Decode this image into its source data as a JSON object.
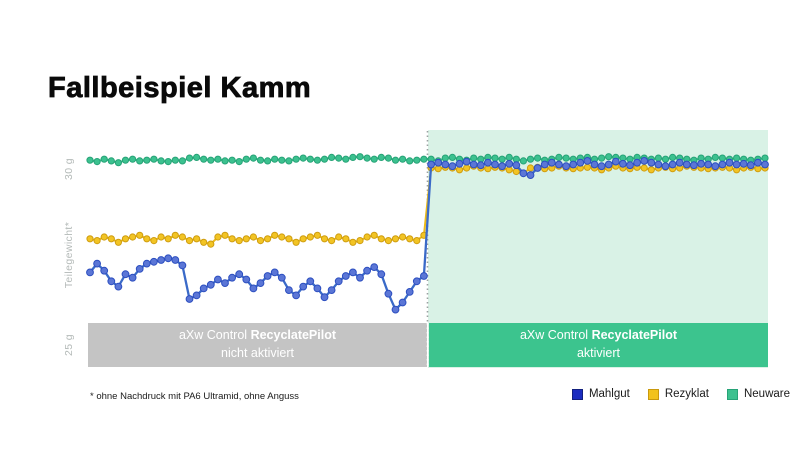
{
  "slide": {
    "title": "Fallbeispiel Kamm",
    "footnote": "* ohne Nachdruck mit PA6 Ultramid, ohne Anguss"
  },
  "annotations": {
    "left_band": {
      "prefix": "aXw Control",
      "bold": "RecyclatePilot",
      "line2": "nicht aktiviert",
      "bg": "#c4c4c4"
    },
    "right_band": {
      "prefix": "aXw Control",
      "bold": "RecyclatePilot",
      "line2": "aktiviert",
      "bg": "#3cc48e"
    },
    "highlight_region_color": "#d9f2e6",
    "divider_color": "#9aa0a0"
  },
  "chart_data": {
    "type": "line",
    "title": "",
    "xlabel": "",
    "ylabel": "Teilegewicht*",
    "y_ticks": [
      {
        "value": 30,
        "label": "30 g"
      },
      {
        "value": 25,
        "label": "25 g"
      }
    ],
    "ylim": [
      25.5,
      31.1
    ],
    "grid": false,
    "legend_position": "bottom-right",
    "x_count": 96,
    "divider_after_index": 47,
    "series": [
      {
        "name": "Neuware",
        "line_color": "#3cc18f",
        "marker_color": "#3cc18f",
        "marker_border": "#27a377",
        "values": [
          30.22,
          30.18,
          30.25,
          30.2,
          30.15,
          30.22,
          30.25,
          30.2,
          30.22,
          30.25,
          30.2,
          30.18,
          30.22,
          30.2,
          30.28,
          30.3,
          30.25,
          30.22,
          30.25,
          30.2,
          30.22,
          30.18,
          30.25,
          30.28,
          30.22,
          30.2,
          30.25,
          30.22,
          30.2,
          30.25,
          30.28,
          30.25,
          30.22,
          30.25,
          30.3,
          30.28,
          30.25,
          30.3,
          30.32,
          30.28,
          30.25,
          30.3,
          30.28,
          30.22,
          30.25,
          30.2,
          30.22,
          30.25,
          30.25,
          30.2,
          30.28,
          30.3,
          30.25,
          30.22,
          30.28,
          30.25,
          30.3,
          30.28,
          30.25,
          30.3,
          30.25,
          30.2,
          30.25,
          30.28,
          30.22,
          30.25,
          30.3,
          30.28,
          30.25,
          30.28,
          30.3,
          30.25,
          30.28,
          30.32,
          30.3,
          30.28,
          30.25,
          30.3,
          30.28,
          30.25,
          30.28,
          30.25,
          30.3,
          30.28,
          30.25,
          30.22,
          30.28,
          30.25,
          30.3,
          30.28,
          30.25,
          30.28,
          30.25,
          30.22,
          30.25,
          30.28
        ]
      },
      {
        "name": "Rezyklat",
        "line_color": "#ecba16",
        "marker_color": "#f2c424",
        "marker_border": "#cf9d10",
        "values": [
          28.0,
          27.95,
          28.05,
          28.0,
          27.9,
          28.0,
          28.05,
          28.1,
          28.0,
          27.95,
          28.05,
          28.0,
          28.1,
          28.05,
          27.95,
          28.0,
          27.9,
          27.85,
          28.05,
          28.1,
          28.0,
          27.95,
          28.0,
          28.05,
          27.95,
          28.0,
          28.1,
          28.05,
          28.0,
          27.9,
          28.0,
          28.05,
          28.1,
          28.0,
          27.95,
          28.05,
          28.0,
          27.9,
          27.95,
          28.05,
          28.1,
          28.0,
          27.95,
          28.0,
          28.05,
          28.0,
          27.95,
          28.1,
          30.0,
          29.98,
          30.02,
          30.0,
          29.95,
          30.0,
          30.05,
          30.0,
          29.98,
          30.02,
          30.0,
          29.95,
          29.9,
          29.85,
          30.0,
          30.02,
          29.98,
          30.0,
          30.05,
          30.0,
          29.98,
          30.0,
          30.02,
          30.0,
          29.95,
          30.0,
          30.05,
          30.0,
          29.98,
          30.02,
          30.0,
          29.95,
          30.0,
          30.02,
          29.98,
          30.0,
          30.05,
          30.02,
          30.0,
          29.98,
          30.0,
          30.02,
          30.0,
          29.95,
          30.0,
          30.02,
          29.98,
          30.0
        ]
      },
      {
        "name": "Mahlgut",
        "line_color": "#3a6ac8",
        "marker_color": "#5b76d6",
        "marker_border": "#2d4fc0",
        "values": [
          27.05,
          27.3,
          27.1,
          26.8,
          26.65,
          27.0,
          26.9,
          27.15,
          27.3,
          27.35,
          27.4,
          27.45,
          27.4,
          27.25,
          26.3,
          26.4,
          26.6,
          26.7,
          26.85,
          26.75,
          26.9,
          27.0,
          26.85,
          26.6,
          26.75,
          26.95,
          27.05,
          26.9,
          26.55,
          26.4,
          26.65,
          26.8,
          26.6,
          26.35,
          26.55,
          26.8,
          26.95,
          27.05,
          26.9,
          27.1,
          27.2,
          27.0,
          26.45,
          26.0,
          26.2,
          26.5,
          26.8,
          26.95,
          30.1,
          30.15,
          30.1,
          30.05,
          30.12,
          30.18,
          30.1,
          30.08,
          30.15,
          30.1,
          30.05,
          30.12,
          30.08,
          29.85,
          29.8,
          30.0,
          30.1,
          30.15,
          30.1,
          30.05,
          30.1,
          30.15,
          30.2,
          30.1,
          30.05,
          30.1,
          30.18,
          30.12,
          30.08,
          30.15,
          30.2,
          30.15,
          30.1,
          30.05,
          30.1,
          30.15,
          30.1,
          30.08,
          30.12,
          30.1,
          30.05,
          30.1,
          30.15,
          30.1,
          30.12,
          30.08,
          30.15,
          30.1
        ]
      }
    ],
    "legend": [
      {
        "label": "Mahlgut",
        "color": "#1b2cc0",
        "border": "#12207e"
      },
      {
        "label": "Rezyklat",
        "color": "#f2c21c",
        "border": "#c9990e"
      },
      {
        "label": "Neuware",
        "color": "#3cc18f",
        "border": "#27a377"
      }
    ]
  }
}
